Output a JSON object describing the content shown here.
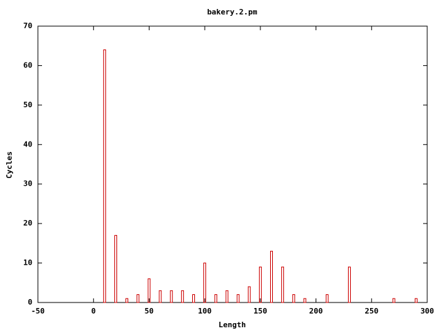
{
  "chart_data": {
    "type": "bar",
    "title": "bakery.2.pm",
    "x_label": "Length",
    "y_label": "Cycles",
    "x": [
      10,
      20,
      30,
      40,
      50,
      60,
      70,
      80,
      90,
      100,
      110,
      120,
      130,
      140,
      150,
      160,
      170,
      180,
      190,
      210,
      230,
      270,
      290
    ],
    "values": [
      64,
      17,
      1,
      2,
      6,
      3,
      3,
      3,
      2,
      10,
      2,
      3,
      2,
      4,
      9,
      13,
      9,
      2,
      1,
      2,
      9,
      1,
      1
    ],
    "color": "#cc0000",
    "xlim": [
      -50,
      300
    ],
    "xticks": [
      -50,
      0,
      50,
      100,
      150,
      200,
      250,
      300
    ],
    "ylim": [
      0,
      70
    ],
    "yticks": [
      0,
      10,
      20,
      30,
      40,
      50,
      60,
      70
    ]
  }
}
